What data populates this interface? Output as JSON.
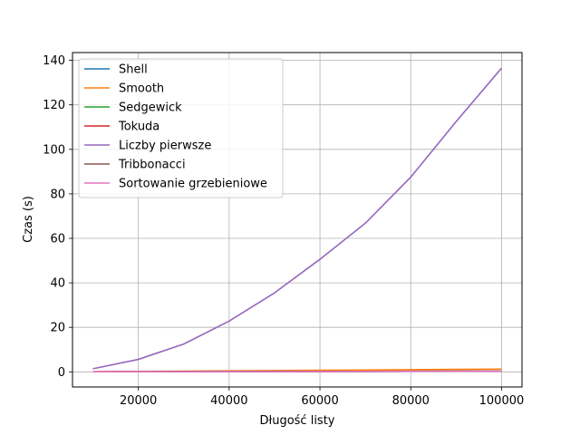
{
  "chart_data": {
    "type": "line",
    "xlabel": "Długość listy",
    "ylabel": "Czas (s)",
    "xlim": [
      5500,
      104500
    ],
    "ylim": [
      -6.8,
      143.5
    ],
    "xticks": [
      20000,
      40000,
      60000,
      80000,
      100000
    ],
    "yticks": [
      0,
      20,
      40,
      60,
      80,
      100,
      120,
      140
    ],
    "grid": true,
    "legend_position": "upper-left",
    "x": [
      10000,
      20000,
      30000,
      40000,
      50000,
      60000,
      70000,
      80000,
      90000,
      100000
    ],
    "series": [
      {
        "name": "Shell",
        "color": "#1f77b4",
        "values": [
          0.02,
          0.05,
          0.08,
          0.11,
          0.15,
          0.18,
          0.22,
          0.25,
          0.29,
          0.33
        ]
      },
      {
        "name": "Smooth",
        "color": "#ff7f0e",
        "values": [
          0.1,
          0.2,
          0.32,
          0.45,
          0.58,
          0.7,
          0.83,
          0.96,
          1.1,
          1.25
        ]
      },
      {
        "name": "Sedgewick",
        "color": "#2ca02c",
        "values": [
          0.02,
          0.05,
          0.08,
          0.11,
          0.14,
          0.17,
          0.2,
          0.24,
          0.27,
          0.31
        ]
      },
      {
        "name": "Tokuda",
        "color": "#d62728",
        "values": [
          0.02,
          0.05,
          0.08,
          0.11,
          0.14,
          0.17,
          0.2,
          0.24,
          0.27,
          0.3
        ]
      },
      {
        "name": "Liczby pierwsze",
        "color": "#9467bd",
        "values": [
          1.4,
          5.6,
          12.5,
          22.8,
          35.5,
          50.6,
          66.8,
          87.5,
          112.5,
          136.5
        ]
      },
      {
        "name": "Tribbonacci",
        "color": "#8c564b",
        "values": [
          0.02,
          0.05,
          0.08,
          0.11,
          0.14,
          0.17,
          0.2,
          0.23,
          0.26,
          0.3
        ]
      },
      {
        "name": "Sortowanie grzebieniowe",
        "color": "#e377c2",
        "values": [
          0.02,
          0.04,
          0.07,
          0.1,
          0.12,
          0.15,
          0.18,
          0.21,
          0.24,
          0.27
        ]
      }
    ]
  }
}
